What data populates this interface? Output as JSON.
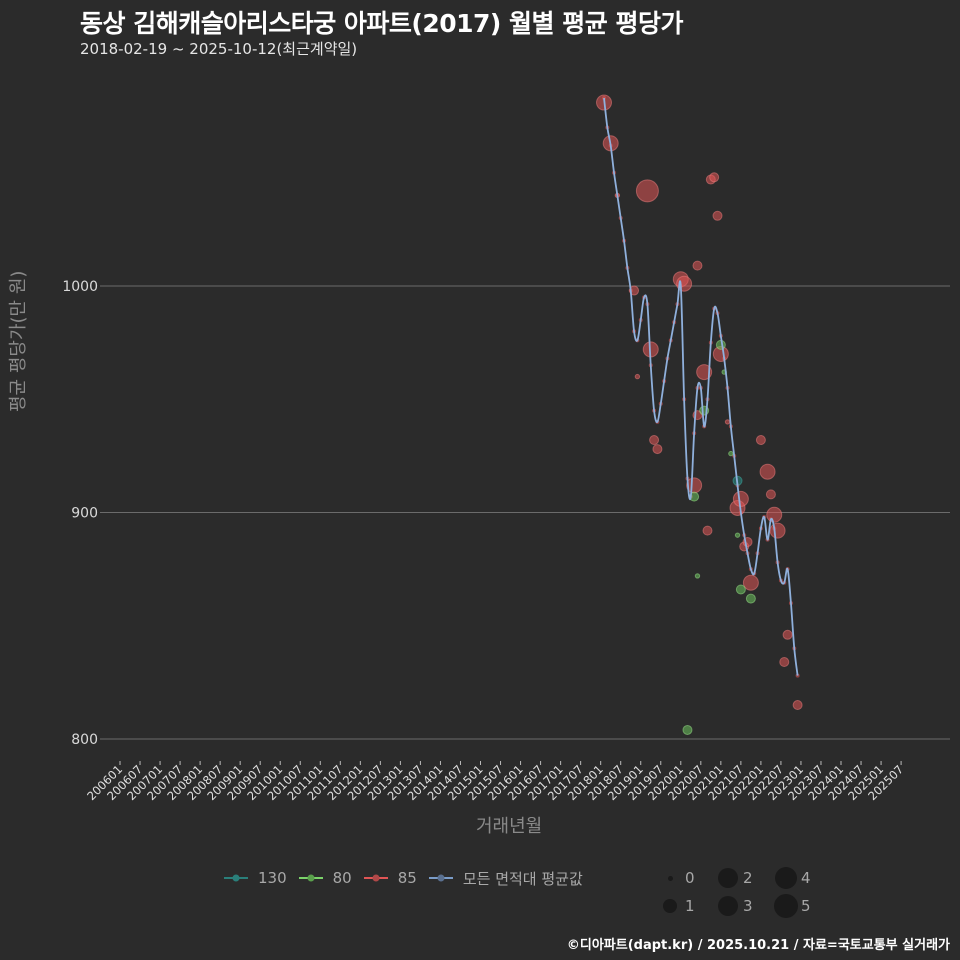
{
  "header": {
    "title": "동상 김해캐슬아리스타궁 아파트(2017) 월별 평균 평당가",
    "subtitle": "2018-02-19 ~ 2025-10-12(최근계약일)"
  },
  "axes": {
    "ylabel": "평균 평당가(만 원)",
    "xlabel": "거래년월"
  },
  "legend": {
    "series": [
      {
        "label": "130",
        "color": "#2a7f7a"
      },
      {
        "label": "80",
        "color": "#7bd36a"
      },
      {
        "label": "85",
        "color": "#e05555"
      },
      {
        "label": "모든 면적대 평균값",
        "color": "#7a9cc8"
      }
    ],
    "sizes": [
      "0",
      "1",
      "2",
      "3",
      "4",
      "5"
    ]
  },
  "footer": {
    "credit": "©디아파트(dapt.kr) / 2025.10.21 / 자료=국토교통부 실거래가"
  },
  "colors": {
    "background": "#2b2b2b",
    "grid": "#6b6b6b",
    "area_130": "#2a7f7a",
    "area_80": "#7bd36a",
    "area_85": "#e05555",
    "average": "#8fb0dc"
  },
  "chart_data": {
    "type": "scatter",
    "title": "동상 김해캐슬아리스타궁 아파트(2017) 월별 평균 평당가",
    "subtitle": "2018-02-19 ~ 2025-10-12(최근계약일)",
    "xlabel": "거래년월",
    "ylabel": "평균 평당가(만 원)",
    "ylim": [
      790,
      1080
    ],
    "yticks": [
      800,
      900,
      1000
    ],
    "xticks": [
      "200601",
      "200607",
      "200701",
      "200707",
      "200801",
      "200807",
      "200901",
      "200907",
      "201001",
      "201007",
      "201101",
      "201107",
      "201201",
      "201207",
      "201301",
      "201307",
      "201401",
      "201407",
      "201501",
      "201507",
      "201601",
      "201607",
      "201701",
      "201707",
      "201801",
      "201807",
      "201901",
      "201907",
      "202001",
      "202007",
      "202101",
      "202107",
      "202201",
      "202207",
      "202301",
      "202307",
      "202401",
      "202407",
      "202501",
      "202507"
    ],
    "grid": true,
    "legend_position": "bottom",
    "size_legend": [
      0,
      1,
      2,
      3,
      4,
      5
    ],
    "series": [
      {
        "name": "모든 면적대 평균값",
        "kind": "line",
        "points": [
          [
            "201802",
            1083
          ],
          [
            "201803",
            1070
          ],
          [
            "201804",
            1062
          ],
          [
            "201805",
            1050
          ],
          [
            "201806",
            1040
          ],
          [
            "201807",
            1030
          ],
          [
            "201808",
            1020
          ],
          [
            "201809",
            1008
          ],
          [
            "201810",
            998
          ],
          [
            "201811",
            980
          ],
          [
            "201812",
            976
          ],
          [
            "201901",
            985
          ],
          [
            "201902",
            995
          ],
          [
            "201903",
            992
          ],
          [
            "201904",
            965
          ],
          [
            "201905",
            945
          ],
          [
            "201906",
            940
          ],
          [
            "201907",
            948
          ],
          [
            "201908",
            958
          ],
          [
            "201909",
            968
          ],
          [
            "201910",
            976
          ],
          [
            "201911",
            984
          ],
          [
            "201912",
            992
          ],
          [
            "202001",
            1000
          ],
          [
            "202002",
            950
          ],
          [
            "202003",
            915
          ],
          [
            "202004",
            907
          ],
          [
            "202005",
            935
          ],
          [
            "202006",
            955
          ],
          [
            "202007",
            955
          ],
          [
            "202008",
            938
          ],
          [
            "202009",
            950
          ],
          [
            "202010",
            975
          ],
          [
            "202011",
            990
          ],
          [
            "202012",
            988
          ],
          [
            "202101",
            978
          ],
          [
            "202102",
            968
          ],
          [
            "202103",
            955
          ],
          [
            "202104",
            938
          ],
          [
            "202105",
            925
          ],
          [
            "202106",
            912
          ],
          [
            "202107",
            900
          ],
          [
            "202108",
            890
          ],
          [
            "202109",
            882
          ],
          [
            "202110",
            875
          ],
          [
            "202111",
            873
          ],
          [
            "202112",
            882
          ],
          [
            "202201",
            893
          ],
          [
            "202202",
            898
          ],
          [
            "202203",
            888
          ],
          [
            "202204",
            897
          ],
          [
            "202205",
            893
          ],
          [
            "202206",
            878
          ],
          [
            "202207",
            870
          ],
          [
            "202208",
            869
          ],
          [
            "202209",
            875
          ],
          [
            "202210",
            860
          ],
          [
            "202211",
            840
          ],
          [
            "202212",
            828
          ]
        ]
      },
      {
        "name": "85",
        "kind": "bubble",
        "points": [
          [
            "201802",
            1081,
            2
          ],
          [
            "201804",
            1063,
            2
          ],
          [
            "201806",
            1040,
            0
          ],
          [
            "201811",
            998,
            1
          ],
          [
            "201812",
            960,
            0
          ],
          [
            "201903",
            1042,
            3
          ],
          [
            "201904",
            972,
            2
          ],
          [
            "201905",
            932,
            1
          ],
          [
            "201906",
            928,
            1
          ],
          [
            "202001",
            1003,
            2
          ],
          [
            "202002",
            1001,
            2
          ],
          [
            "202005",
            912,
            2
          ],
          [
            "202006",
            943,
            1
          ],
          [
            "202006",
            1009,
            1
          ],
          [
            "202008",
            962,
            2
          ],
          [
            "202009",
            892,
            1
          ],
          [
            "202010",
            1047,
            1
          ],
          [
            "202011",
            1048,
            1
          ],
          [
            "202012",
            1031,
            1
          ],
          [
            "202101",
            970,
            2
          ],
          [
            "202103",
            940,
            0
          ],
          [
            "202106",
            902,
            2
          ],
          [
            "202107",
            906,
            2
          ],
          [
            "202108",
            885,
            1
          ],
          [
            "202109",
            887,
            1
          ],
          [
            "202110",
            869,
            2
          ],
          [
            "202201",
            932,
            1
          ],
          [
            "202203",
            918,
            2
          ],
          [
            "202204",
            908,
            1
          ],
          [
            "202205",
            899,
            2
          ],
          [
            "202206",
            892,
            2
          ],
          [
            "202208",
            834,
            1
          ],
          [
            "202209",
            846,
            1
          ],
          [
            "202212",
            815,
            1
          ]
        ]
      },
      {
        "name": "80",
        "kind": "bubble",
        "points": [
          [
            "202003",
            804,
            1
          ],
          [
            "202006",
            872,
            0
          ],
          [
            "202005",
            907,
            1
          ],
          [
            "202008",
            945,
            1
          ],
          [
            "202101",
            974,
            1
          ],
          [
            "202102",
            962,
            0
          ],
          [
            "202104",
            926,
            0
          ],
          [
            "202106",
            890,
            0
          ],
          [
            "202107",
            866,
            1
          ],
          [
            "202110",
            862,
            1
          ]
        ]
      },
      {
        "name": "130",
        "kind": "bubble",
        "points": [
          [
            "202106",
            914,
            1
          ]
        ]
      }
    ]
  }
}
